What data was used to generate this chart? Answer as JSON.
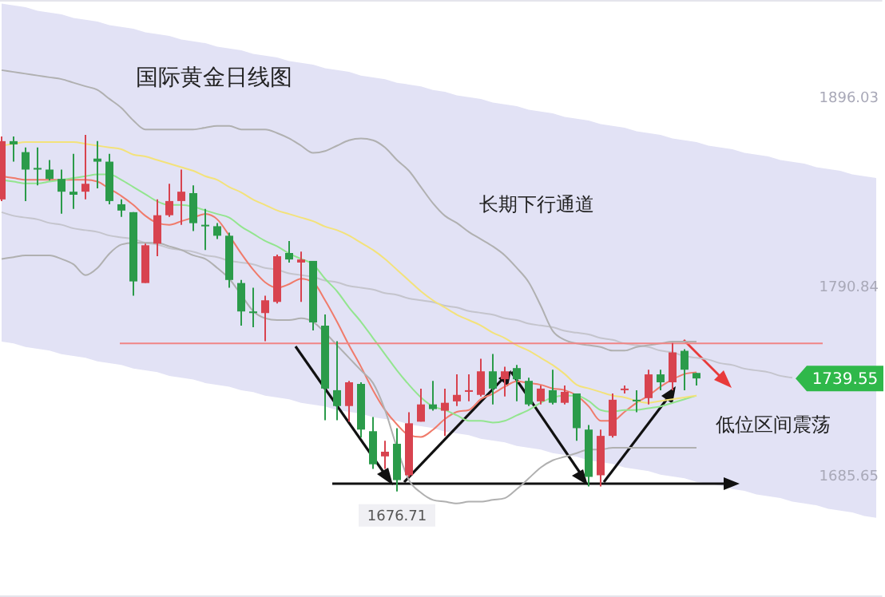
{
  "chart_data": {
    "type": "candlestick",
    "title": "国际黄金日线图",
    "categories": [
      null,
      null,
      null,
      null,
      null,
      null,
      null,
      null,
      null,
      null,
      null,
      null,
      null,
      null,
      null,
      null,
      null,
      null,
      null,
      null,
      null,
      null,
      null,
      null,
      null,
      null,
      null,
      null,
      null,
      null,
      null,
      null,
      null,
      null,
      null,
      null,
      null,
      null,
      null,
      null,
      null,
      null,
      null,
      null,
      null,
      null,
      null,
      null,
      null,
      null,
      null,
      null,
      null,
      null,
      null,
      null,
      null,
      null,
      null,
      null,
      null,
      null,
      null,
      null,
      null,
      null,
      null,
      null,
      null,
      null,
      null,
      null,
      null,
      null
    ],
    "ohlc": [
      [
        1839.1,
        1874.1,
        1838.2,
        1871.5
      ],
      [
        1871.5,
        1874.1,
        1860.1,
        1869.7
      ],
      [
        1865.4,
        1868.0,
        1838.2,
        1855.7
      ],
      [
        1856.6,
        1868.0,
        1846.9,
        1855.7
      ],
      [
        1855.7,
        1861.0,
        1849.6,
        1850.5
      ],
      [
        1850.5,
        1855.7,
        1831.2,
        1843.4
      ],
      [
        1843.4,
        1864.5,
        1833.8,
        1841.7
      ],
      [
        1843.4,
        1875.0,
        1839.1,
        1847.8
      ],
      [
        1861.8,
        1871.5,
        1845.2,
        1860.1
      ],
      [
        1860.1,
        1864.5,
        1836.4,
        1838.2
      ],
      [
        1836.4,
        1839.1,
        1829.4,
        1832.9
      ],
      [
        1832.0,
        1832.0,
        1785.6,
        1793.5
      ],
      [
        1792.6,
        1814.5,
        1792.6,
        1813.6
      ],
      [
        1814.5,
        1839.1,
        1807.5,
        1830.3
      ],
      [
        1830.3,
        1847.8,
        1829.4,
        1838.2
      ],
      [
        1838.2,
        1855.7,
        1825.0,
        1843.4
      ],
      [
        1842.6,
        1846.9,
        1821.5,
        1825.9
      ],
      [
        1825.0,
        1833.8,
        1811.0,
        1824.2
      ],
      [
        1824.2,
        1825.9,
        1817.1,
        1818.9
      ],
      [
        1818.9,
        1820.6,
        1790.0,
        1794.3
      ],
      [
        1792.6,
        1794.3,
        1768.9,
        1776.8
      ],
      [
        1776.8,
        1790.0,
        1768.0,
        1775.9
      ],
      [
        1775.9,
        1785.6,
        1760.2,
        1783.0
      ],
      [
        1782.1,
        1808.4,
        1781.2,
        1807.5
      ],
      [
        1809.3,
        1816.0,
        1804.0,
        1805.7
      ],
      [
        1804.0,
        1810.1,
        1782.1,
        1805.7
      ],
      [
        1804.9,
        1804.9,
        1766.3,
        1770.7
      ],
      [
        1768.9,
        1775.1,
        1716.3,
        1733.9
      ],
      [
        1733.0,
        1760.2,
        1716.3,
        1724.2
      ],
      [
        1724.2,
        1738.2,
        1715.5,
        1737.4
      ],
      [
        1736.5,
        1737.4,
        1706.7,
        1711.1
      ],
      [
        1710.2,
        1718.1,
        1689.2,
        1691.8
      ],
      [
        1696.2,
        1704.9,
        1689.2,
        1698.8
      ],
      [
        1703.2,
        1711.9,
        1676.71,
        1683.0
      ],
      [
        1685.7,
        1720.7,
        1684.8,
        1714.6
      ],
      [
        1715.5,
        1733.9,
        1715.5,
        1725.1
      ],
      [
        1725.1,
        1738.2,
        1721.6,
        1722.5
      ],
      [
        1721.6,
        1733.9,
        1707.6,
        1726.0
      ],
      [
        1726.8,
        1741.8,
        1724.2,
        1730.4
      ],
      [
        1732.1,
        1741.8,
        1726.8,
        1733.0
      ],
      [
        1730.4,
        1750.5,
        1729.5,
        1743.5
      ],
      [
        1743.5,
        1753.1,
        1725.1,
        1733.9
      ],
      [
        1739.1,
        1746.1,
        1729.5,
        1743.5
      ],
      [
        1745.3,
        1747.0,
        1726.8,
        1739.1
      ],
      [
        1738.2,
        1740.0,
        1724.2,
        1725.1
      ],
      [
        1726.8,
        1735.6,
        1725.1,
        1733.9
      ],
      [
        1733.0,
        1744.4,
        1725.1,
        1726.0
      ],
      [
        1726.0,
        1735.6,
        1725.1,
        1732.1
      ],
      [
        1731.2,
        1731.2,
        1704.9,
        1711.9
      ],
      [
        1711.1,
        1713.7,
        1679.5,
        1684.8
      ],
      [
        1685.7,
        1711.1,
        1679.5,
        1707.6
      ],
      [
        1707.6,
        1731.2,
        1706.7,
        1727.7
      ],
      [
        1733.0,
        1735.6,
        1731.2,
        1733.9
      ],
      [
        1727.7,
        1733.0,
        1720.7,
        1726.8
      ],
      [
        1728.6,
        1744.4,
        1725.1,
        1741.8
      ],
      [
        1741.8,
        1744.4,
        1733.0,
        1737.4
      ],
      [
        1737.4,
        1759.3,
        1733.0,
        1754.0
      ],
      [
        1754.9,
        1755.8,
        1733.0,
        1744.4
      ],
      [
        1742.6,
        1742.6,
        1735.6,
        1739.55
      ],
      null,
      null,
      null,
      null,
      null,
      null,
      null,
      null,
      null,
      null,
      null,
      null,
      null,
      null,
      null
    ],
    "colors": [
      "#d8434f",
      "#2b9b4a",
      "#2b9b4a",
      "#2b9b4a",
      "#2b9b4a",
      "#2b9b4a",
      "#2b9b4a",
      "#d8434f",
      "#2b9b4a",
      "#2b9b4a",
      "#2b9b4a",
      "#2b9b4a",
      "#d8434f",
      "#d8434f",
      "#d8434f",
      "#d8434f",
      "#2b9b4a",
      "#2b9b4a",
      "#2b9b4a",
      "#2b9b4a",
      "#2b9b4a",
      "#2b9b4a",
      "#d8434f",
      "#d8434f",
      "#2b9b4a",
      "#d8434f",
      "#2b9b4a",
      "#2b9b4a",
      "#2b9b4a",
      "#d8434f",
      "#2b9b4a",
      "#2b9b4a",
      "#d8434f",
      "#2b9b4a",
      "#d8434f",
      "#d8434f",
      "#2b9b4a",
      "#d8434f",
      "#d8434f",
      "#d8434f",
      "#d8434f",
      "#2b9b4a",
      "#d8434f",
      "#2b9b4a",
      "#2b9b4a",
      "#d8434f",
      "#2b9b4a",
      "#d8434f",
      "#2b9b4a",
      "#2b9b4a",
      "#d8434f",
      "#d8434f",
      "#d8434f",
      "#2b9b4a",
      "#d8434f",
      "#2b9b4a",
      "#d8434f",
      "#2b9b4a",
      "#2b9b4a",
      null,
      null,
      null,
      null,
      null,
      null,
      null,
      null,
      null,
      null,
      null,
      null,
      null,
      null,
      null
    ],
    "series": [
      {
        "type": "line",
        "color": "#c4c4cc",
        "values": [
          1832,
          1830,
          1829,
          1828,
          1826,
          1825,
          1823,
          1822,
          1821,
          1819,
          1818,
          1817,
          1815,
          1814,
          1812,
          1811,
          1810,
          1808,
          1807,
          1805,
          1804,
          1803,
          1801,
          1800,
          1798,
          1797,
          1796,
          1794,
          1793,
          1791,
          1790,
          1789,
          1787,
          1786,
          1784,
          1783,
          1782,
          1780,
          1779,
          1777,
          1776,
          1775,
          1773,
          1772,
          1770,
          1769,
          1768,
          1766,
          1765,
          1764,
          1762,
          1761,
          1759,
          1758,
          1757,
          1755,
          1754,
          1752,
          1751,
          1750,
          1748,
          1747,
          1745,
          1744,
          1743,
          1741,
          1740,
          null,
          null,
          null,
          null,
          null,
          null,
          null
        ],
        "upper": [
          1948,
          1947,
          1946,
          1944,
          1943,
          1942,
          1940,
          1939,
          1938,
          1936,
          1935,
          1934,
          1932,
          1931,
          1930,
          1928,
          1927,
          1926,
          1924,
          1923,
          1922,
          1920,
          1919,
          1918,
          1916,
          1915,
          1914,
          1912,
          1911,
          1910,
          1908,
          1907,
          1906,
          1904,
          1903,
          1902,
          1900,
          1899,
          1897,
          1896,
          1895,
          1893,
          1892,
          1891,
          1889,
          1888,
          1887,
          1885,
          1884,
          1883,
          1881,
          1880,
          1879,
          1877,
          1876,
          1875,
          1873,
          1872,
          1871,
          1869,
          1868,
          1867,
          1865,
          1864,
          1863,
          1861,
          1860,
          1859,
          1857,
          1856,
          1855,
          1853,
          1852,
          1851
        ],
        "lower": [
          1760,
          1759,
          1757,
          1756,
          1755,
          1753,
          1752,
          1751,
          1749,
          1748,
          1747,
          1745,
          1744,
          1743,
          1741,
          1740,
          1739,
          1737,
          1736,
          1735,
          1733,
          1732,
          1730,
          1729,
          1728,
          1726,
          1725,
          1724,
          1722,
          1721,
          1720,
          1718,
          1717,
          1716,
          1714,
          1713,
          1712,
          1710,
          1709,
          1708,
          1706,
          1705,
          1704,
          1702,
          1701,
          1700,
          1698,
          1697,
          1696,
          1694,
          1693,
          1692,
          1690,
          1689,
          1688,
          1686,
          1685,
          1684,
          1682,
          1681,
          1680,
          1678,
          1677,
          1675,
          1674,
          1673,
          1671,
          1670,
          1669,
          1667,
          1666,
          1665,
          1663,
          1662
        ]
      },
      {
        "type": "line",
        "color": "#f07b6b",
        "values": [
          1852,
          1851,
          1850,
          1850,
          1850,
          1850,
          1850,
          1850,
          1849,
          1845,
          1841,
          1836,
          1830,
          1826,
          1825,
          1827,
          1829,
          1831,
          1828,
          1819,
          1809,
          1800,
          1793,
          1790,
          1792,
          1795,
          1793,
          1783,
          1771,
          1758,
          1746,
          1733,
          1722,
          1714,
          1708,
          1707,
          1711,
          1717,
          1721,
          1722,
          1728,
          1731,
          1735,
          1738,
          1737,
          1736,
          1734,
          1733,
          1730,
          1724,
          1716,
          1716,
          1721,
          1726,
          1730,
          1735,
          1739,
          1742,
          1743,
          null,
          null,
          null,
          null,
          null,
          null,
          null,
          null,
          null,
          null,
          null,
          null,
          null,
          null,
          null
        ]
      },
      {
        "type": "line",
        "color": "#93e58f",
        "values": [
          1850,
          1849,
          1848,
          1848,
          1849,
          1850,
          1851,
          1852,
          1853,
          1853,
          1850,
          1846,
          1842,
          1838,
          1836,
          1836,
          1835,
          1833,
          1831,
          1829,
          1824,
          1820,
          1816,
          1813,
          1809,
          1806,
          1803,
          1795,
          1788,
          1779,
          1771,
          1762,
          1753,
          1744,
          1736,
          1729,
          1724,
          1722,
          1719,
          1716,
          1716,
          1715,
          1716,
          1719,
          1722,
          1726,
          1729,
          1730,
          1730,
          1727,
          1722,
          1721,
          1722,
          1722,
          1723,
          1724,
          1726,
          1728,
          1730,
          null,
          null,
          null,
          null,
          null,
          null,
          null,
          null,
          null,
          null,
          null,
          null,
          null,
          null,
          null
        ]
      },
      {
        "type": "line",
        "color": "#f3e27a",
        "values": [
          1869,
          1870,
          1871,
          1871,
          1871,
          1871,
          1871,
          1870,
          1869,
          1868,
          1867,
          1864,
          1863,
          1861,
          1859,
          1857,
          1855,
          1852,
          1850,
          1846,
          1843,
          1839,
          1836,
          1833,
          1831,
          1829,
          1827,
          1824,
          1822,
          1819,
          1815,
          1811,
          1806,
          1800,
          1794,
          1788,
          1783,
          1779,
          1775,
          1772,
          1769,
          1765,
          1762,
          1758,
          1755,
          1751,
          1747,
          1742,
          1736,
          1734,
          1732,
          1730,
          1729,
          1727,
          1726,
          1727,
          1728,
          1729,
          1730,
          null,
          null,
          null,
          null,
          null,
          null,
          null,
          null,
          null,
          null,
          null,
          null,
          null,
          null,
          null
        ]
      },
      {
        "type": "line",
        "color": "#b0b0b0",
        "values": [
          1911,
          1910,
          1909,
          1908,
          1907,
          1906,
          1904,
          1902,
          1900,
          1895,
          1890,
          1883,
          1878,
          1878,
          1878,
          1878,
          1878,
          1879,
          1880,
          1880,
          1878,
          1878,
          1878,
          1876,
          1873,
          1869,
          1865,
          1866,
          1869,
          1872,
          1873,
          1872,
          1868,
          1861,
          1855,
          1846,
          1837,
          1830,
          1826,
          1821,
          1817,
          1813,
          1808,
          1801,
          1793,
          1780,
          1766,
          1761,
          1759,
          1758,
          1757,
          1755,
          1755,
          1757,
          1758,
          1759,
          1760,
          1760,
          1760,
          null,
          null,
          null,
          null,
          null,
          null,
          null,
          null,
          null,
          null,
          null,
          null,
          null,
          null,
          null
        ]
      },
      {
        "type": "line",
        "color": "#b0b0b0",
        "values": [
          1806,
          1807,
          1808,
          1808,
          1808,
          1806,
          1803,
          1797,
          1801,
          1809,
          1814,
          1815,
          1815,
          1815,
          1813,
          1811,
          1808,
          1806,
          1801,
          1795,
          1786,
          1777,
          1773,
          1772,
          1772,
          1773,
          1771,
          1765,
          1758,
          1751,
          1744,
          1737,
          1722,
          1701,
          1683,
          1676,
          1672,
          1671,
          1670,
          1671,
          1671,
          1672,
          1673,
          1678,
          1684,
          1690,
          1694,
          1696,
          1698,
          1700,
          1700,
          1701,
          1701,
          1701,
          1701,
          1701,
          1701,
          1701,
          1701,
          null,
          null,
          null,
          null,
          null,
          null,
          null,
          null,
          null,
          null,
          null,
          null,
          null,
          null,
          null
        ]
      }
    ],
    "ylim": [
      1618,
      1950
    ],
    "yticks": [
      1896.03,
      1790.84,
      1685.65
    ],
    "tick_labels": "y",
    "ref_lines": [
      {
        "axis": "y",
        "value": 1759,
        "color": "#f08585"
      }
    ],
    "annotations": [
      "长期下行通道",
      "低位区间震荡",
      "1739.55",
      "1676.71"
    ]
  }
}
